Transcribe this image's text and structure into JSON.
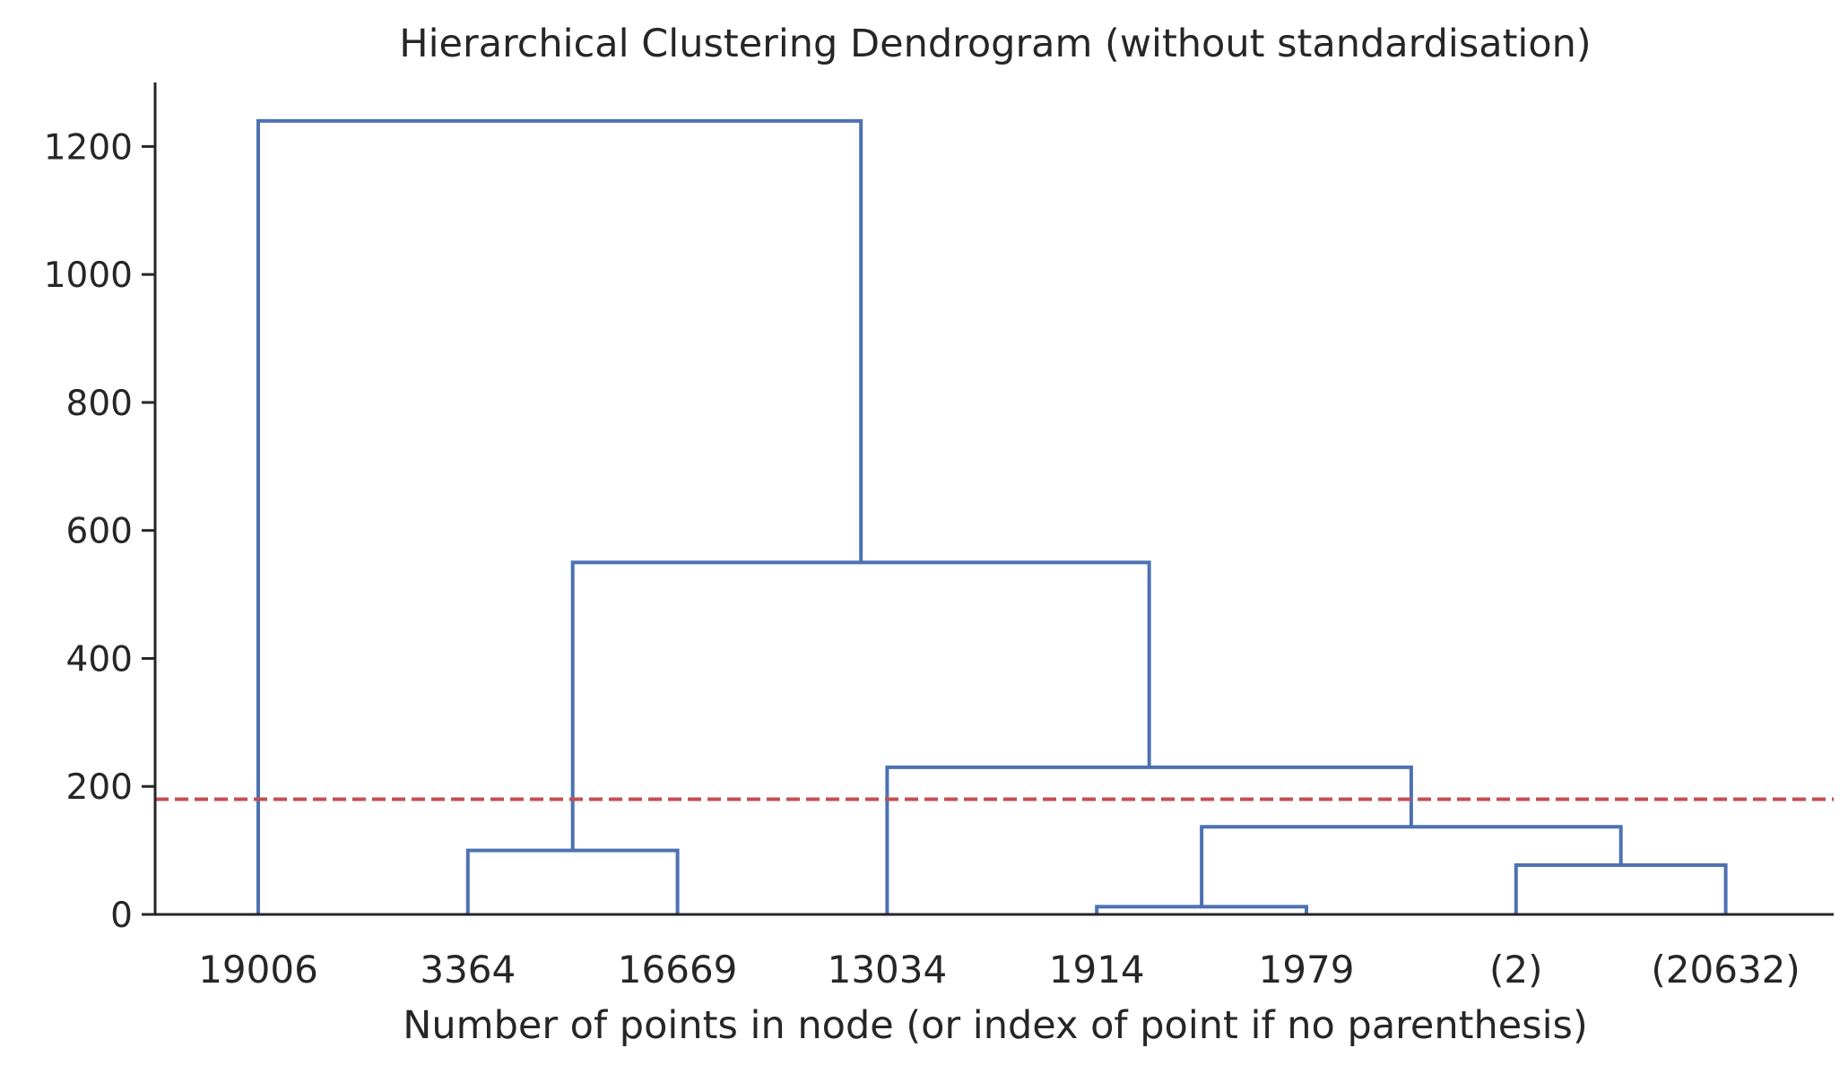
{
  "chart_data": {
    "type": "dendrogram",
    "title": "Hierarchical Clustering Dendrogram (without standardisation)",
    "xlabel": "Number of points in node (or index of point if no parenthesis)",
    "ylabel": "",
    "ylim": [
      0,
      1300
    ],
    "yticks": [
      0,
      200,
      400,
      600,
      800,
      1000,
      1200
    ],
    "leaves": [
      "19006",
      "3364",
      "16669",
      "13034",
      "1914",
      "1979",
      "(2)",
      "(20632)"
    ],
    "merges": [
      {
        "left": "leaf:1",
        "right": "leaf:2",
        "height": 100
      },
      {
        "left": "leaf:4",
        "right": "leaf:5",
        "height": 12
      },
      {
        "left": "leaf:6",
        "right": "leaf:7",
        "height": 77
      },
      {
        "left": "merge:1",
        "right": "merge:2",
        "height": 137
      },
      {
        "left": "leaf:3",
        "right": "merge:3",
        "height": 230
      },
      {
        "left": "merge:0",
        "right": "merge:4",
        "height": 550
      },
      {
        "left": "leaf:0",
        "right": "merge:5",
        "height": 1240
      }
    ],
    "cut_line": {
      "y": 180,
      "style": "dashed"
    },
    "colors": {
      "link": "#4c72b0",
      "cut_line": "#c44e52",
      "axis": "#262626"
    },
    "grid": false,
    "spines": [
      "left",
      "bottom"
    ]
  }
}
